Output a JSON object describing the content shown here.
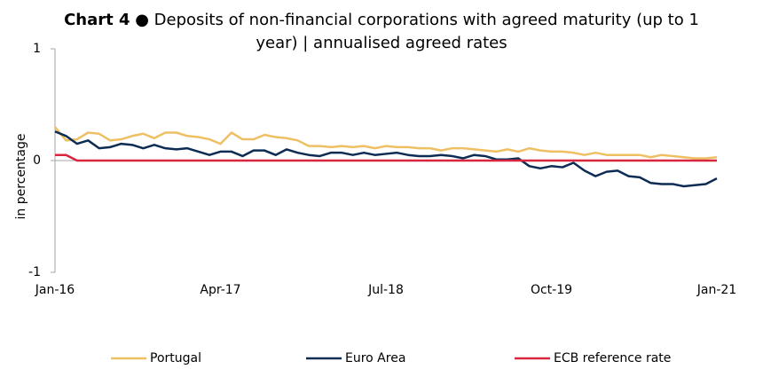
{
  "chart_data": {
    "type": "line",
    "title_number": "Chart 4",
    "title": "● Deposits of non-financial corporations with agreed maturity (up to 1 year) | annualised agreed rates",
    "y_label": "in percentage",
    "categories": [
      "Jan-16",
      null,
      null,
      null,
      null,
      null,
      null,
      null,
      null,
      null,
      null,
      null,
      null,
      null,
      null,
      "Apr-17",
      null,
      null,
      null,
      null,
      null,
      null,
      null,
      null,
      null,
      null,
      null,
      null,
      null,
      null,
      "Jul-18",
      null,
      null,
      null,
      null,
      null,
      null,
      null,
      null,
      null,
      null,
      null,
      null,
      null,
      null,
      "Oct-19",
      null,
      null,
      null,
      null,
      null,
      null,
      null,
      null,
      null,
      null,
      null,
      null,
      null,
      null,
      "Jan-21"
    ],
    "ylim": [
      -1,
      1
    ],
    "yticks": [
      -1,
      0,
      1
    ],
    "legend": "bottom",
    "series": [
      {
        "name": "Portugal",
        "color": "#eec063",
        "values": [
          0.3,
          0.18,
          0.19,
          0.25,
          0.24,
          0.18,
          0.19,
          0.22,
          0.24,
          0.2,
          0.25,
          0.25,
          0.22,
          0.21,
          0.19,
          0.15,
          0.25,
          0.19,
          0.19,
          0.23,
          0.21,
          0.2,
          0.18,
          0.13,
          0.13,
          0.12,
          0.13,
          0.12,
          0.13,
          0.11,
          0.13,
          0.12,
          0.12,
          0.11,
          0.11,
          0.09,
          0.11,
          0.11,
          0.1,
          0.09,
          0.08,
          0.1,
          0.08,
          0.11,
          0.09,
          0.08,
          0.08,
          0.07,
          0.05,
          0.07,
          0.05,
          0.05,
          0.05,
          0.05,
          0.03,
          0.05,
          0.04,
          0.03,
          0.02,
          0.02,
          0.03
        ]
      },
      {
        "name": "Euro Area",
        "color": "#0d2c54",
        "values": [
          0.26,
          0.22,
          0.15,
          0.18,
          0.11,
          0.12,
          0.15,
          0.14,
          0.11,
          0.14,
          0.11,
          0.1,
          0.11,
          0.08,
          0.05,
          0.08,
          0.08,
          0.04,
          0.09,
          0.09,
          0.05,
          0.1,
          0.07,
          0.05,
          0.04,
          0.07,
          0.07,
          0.05,
          0.07,
          0.05,
          0.06,
          0.07,
          0.05,
          0.04,
          0.04,
          0.05,
          0.04,
          0.02,
          0.05,
          0.04,
          0.01,
          0.01,
          0.02,
          -0.05,
          -0.07,
          -0.05,
          -0.06,
          -0.02,
          -0.09,
          -0.14,
          -0.1,
          -0.09,
          -0.14,
          -0.15,
          -0.2,
          -0.21,
          -0.21,
          -0.23,
          -0.22,
          -0.21,
          -0.16
        ]
      },
      {
        "name": "ECB reference rate",
        "color": "#d7263d",
        "values": [
          0.05,
          0.05,
          0,
          0,
          0,
          0,
          0,
          0,
          0,
          0,
          0,
          0,
          0,
          0,
          0,
          0,
          0,
          0,
          0,
          0,
          0,
          0,
          0,
          0,
          0,
          0,
          0,
          0,
          0,
          0,
          0,
          0,
          0,
          0,
          0,
          0,
          0,
          0,
          0,
          0,
          0,
          0,
          0,
          0,
          0,
          0,
          0,
          0,
          0,
          0,
          0,
          0,
          0,
          0,
          0,
          0,
          0,
          0,
          0,
          0,
          0
        ]
      }
    ]
  }
}
